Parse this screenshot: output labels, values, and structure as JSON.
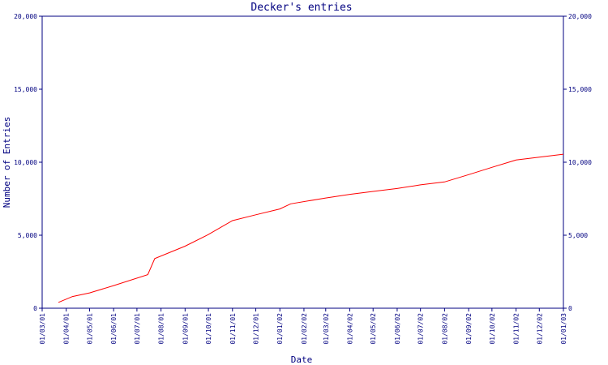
{
  "chart_data": {
    "type": "line",
    "title": "Decker's entries",
    "xlabel": "Date",
    "ylabel": "Number of Entries",
    "ylim": [
      0,
      20000
    ],
    "y_ticks": [
      0,
      5000,
      10000,
      15000,
      20000
    ],
    "y_tick_labels": [
      "0",
      "5,000",
      "10,000",
      "15,000",
      "20,000"
    ],
    "x_tick_labels": [
      "01/03/01",
      "01/04/01",
      "01/05/01",
      "01/06/01",
      "01/07/01",
      "01/08/01",
      "01/09/01",
      "01/10/01",
      "01/11/01",
      "01/12/01",
      "01/01/02",
      "01/02/02",
      "01/03/02",
      "01/04/02",
      "01/05/02",
      "01/06/02",
      "01/07/02",
      "01/08/02",
      "01/09/02",
      "01/10/02",
      "01/11/02",
      "01/12/02",
      "01/01/03"
    ],
    "xlim": [
      "01/03/01",
      "01/01/03"
    ],
    "grid": false,
    "colors": {
      "axis": "#000080",
      "series": "#ff0000",
      "background": "#ffffff"
    },
    "series": [
      {
        "x": [
          "22/03/01",
          "09/04/01",
          "01/05/01",
          "01/06/01",
          "15/07/01",
          "24/07/01",
          "01/09/01",
          "01/10/01",
          "01/11/01",
          "01/12/01",
          "01/01/02",
          "15/01/02",
          "01/03/02",
          "01/04/02",
          "01/05/02",
          "01/06/02",
          "01/07/02",
          "01/08/02",
          "01/09/02",
          "01/10/02",
          "01/11/02",
          "01/12/02",
          "01/01/03"
        ],
        "values": [
          400,
          800,
          1050,
          1550,
          2300,
          3400,
          4250,
          5050,
          6000,
          6400,
          6800,
          7150,
          7550,
          7800,
          8000,
          8200,
          8450,
          8650,
          9150,
          9650,
          10150,
          10350,
          10550
        ]
      }
    ]
  }
}
